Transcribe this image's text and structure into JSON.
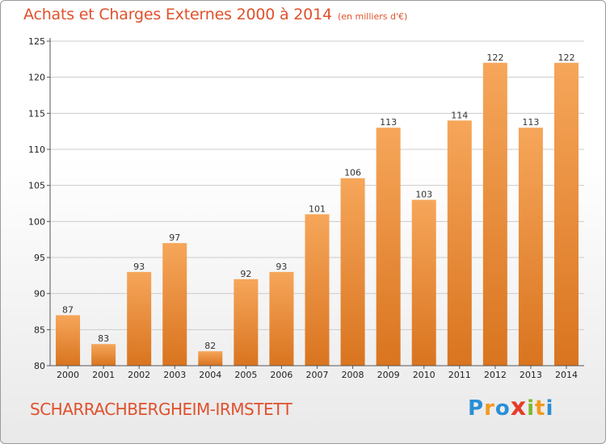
{
  "header": {
    "title": "Achats et Charges Externes 2000 à 2014",
    "subtitle": "(en milliers d'€)"
  },
  "footer": {
    "commune": "SCHARRACHBERGHEIM-IRMSTETT",
    "logo_text": "Proxiti",
    "logo_letters": [
      {
        "ch": "P",
        "color": "#2a8fd6"
      },
      {
        "ch": "r",
        "color": "#f39a1e"
      },
      {
        "ch": "o",
        "color": "#2a8fd6"
      },
      {
        "ch": "x",
        "color": "#e53d2a"
      },
      {
        "ch": "i",
        "color": "#7cb82f"
      },
      {
        "ch": "t",
        "color": "#f39a1e"
      },
      {
        "ch": "i",
        "color": "#2a8fd6"
      }
    ]
  },
  "colors": {
    "bar_top": "#f6a65a",
    "bar_bottom": "#d9741f",
    "grid": "#cccccc",
    "accent": "#e0512c"
  },
  "chart_data": {
    "type": "bar",
    "title": "Achats et Charges Externes 2000 à 2014",
    "subtitle": "(en milliers d'€)",
    "xlabel": "",
    "ylabel": "",
    "categories": [
      "2000",
      "2001",
      "2002",
      "2003",
      "2004",
      "2005",
      "2006",
      "2007",
      "2008",
      "2009",
      "2010",
      "2011",
      "2012",
      "2013",
      "2014"
    ],
    "values": [
      87,
      83,
      93,
      97,
      82,
      92,
      93,
      101,
      106,
      113,
      103,
      114,
      122,
      113,
      122
    ],
    "ylim": [
      80,
      125
    ],
    "yticks": [
      80,
      85,
      90,
      95,
      100,
      105,
      110,
      115,
      120,
      125
    ],
    "grid": true,
    "data_labels": true
  }
}
